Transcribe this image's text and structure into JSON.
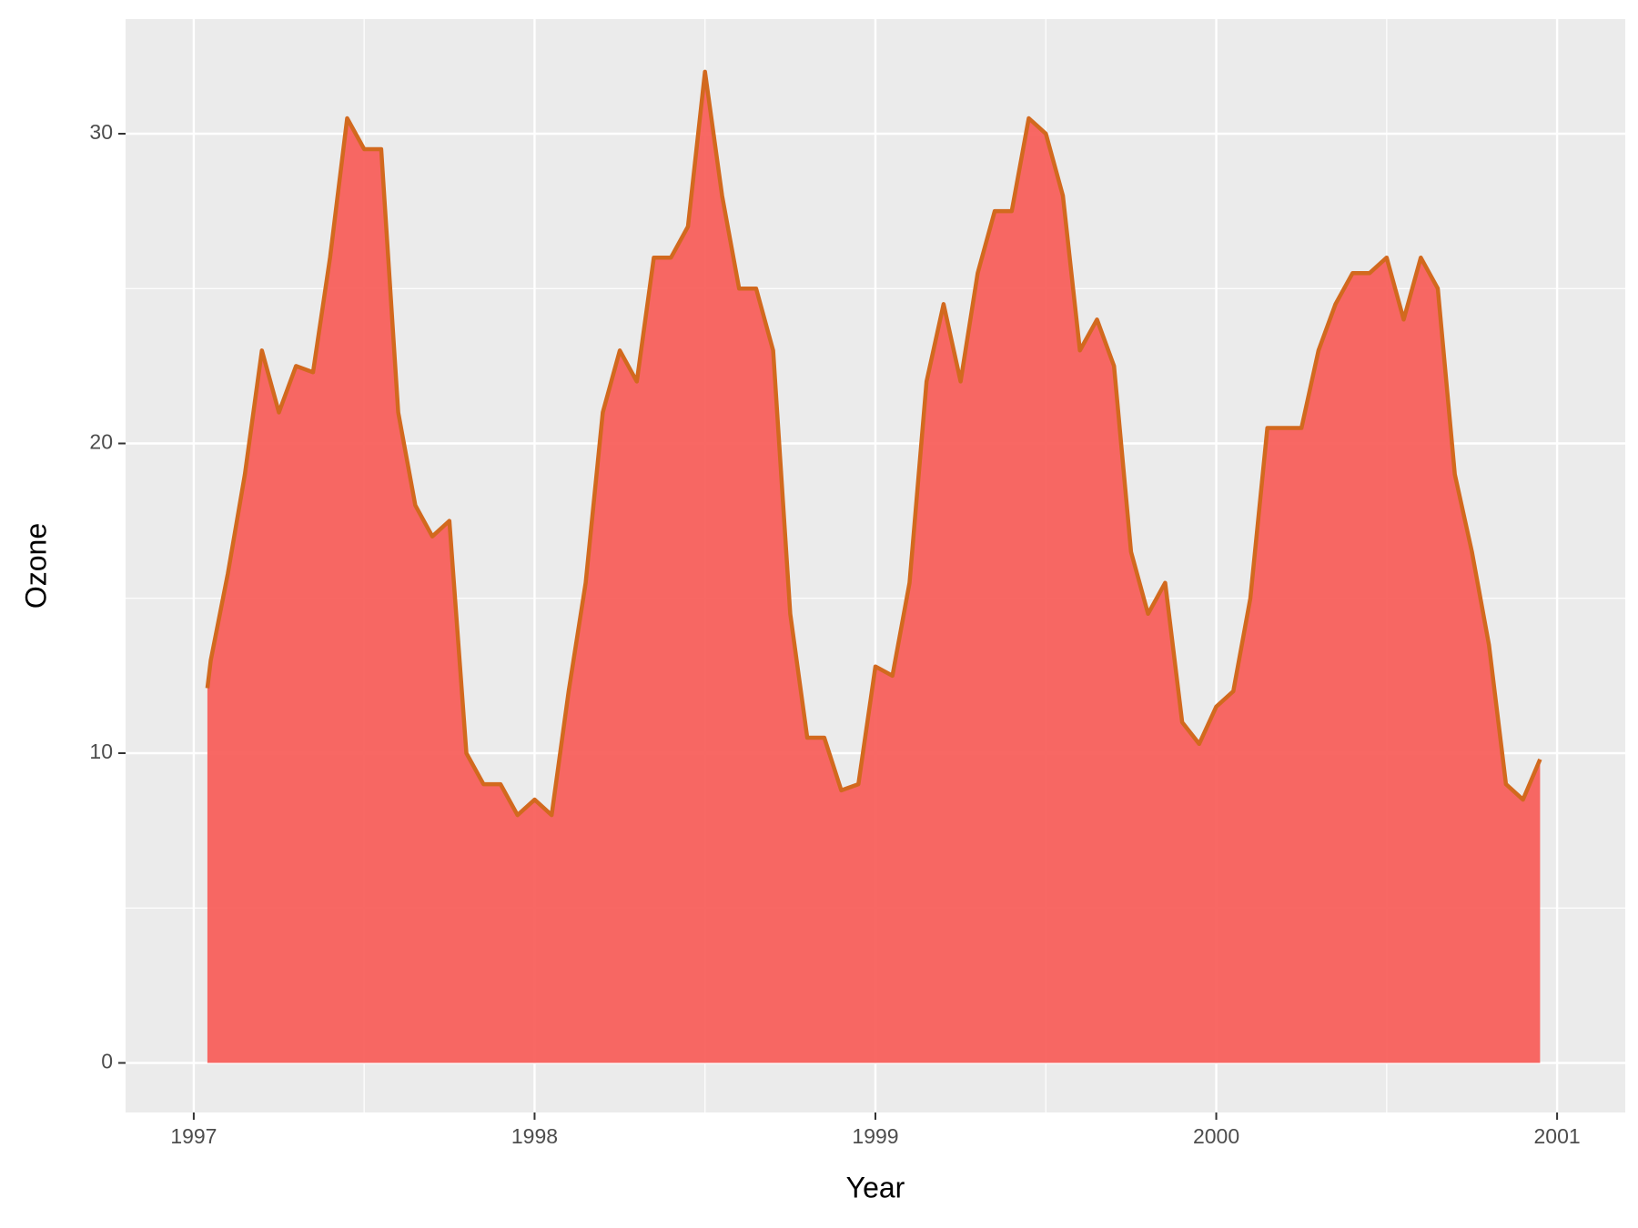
{
  "chart_data": {
    "type": "area",
    "xlabel": "Year",
    "ylabel": "Ozone",
    "x": [
      1997.04,
      1997.05,
      1997.1,
      1997.15,
      1997.2,
      1997.25,
      1997.3,
      1997.35,
      1997.4,
      1997.45,
      1997.5,
      1997.55,
      1997.6,
      1997.65,
      1997.7,
      1997.75,
      1997.8,
      1997.85,
      1997.9,
      1997.95,
      1998.0,
      1998.05,
      1998.1,
      1998.15,
      1998.2,
      1998.25,
      1998.3,
      1998.35,
      1998.4,
      1998.45,
      1998.5,
      1998.55,
      1998.6,
      1998.65,
      1998.7,
      1998.75,
      1998.8,
      1998.85,
      1998.9,
      1998.95,
      1999.0,
      1999.05,
      1999.1,
      1999.15,
      1999.2,
      1999.25,
      1999.3,
      1999.35,
      1999.4,
      1999.45,
      1999.5,
      1999.55,
      1999.6,
      1999.65,
      1999.7,
      1999.75,
      1999.8,
      1999.85,
      1999.9,
      1999.95,
      2000.0,
      2000.05,
      2000.1,
      2000.15,
      2000.2,
      2000.25,
      2000.3,
      2000.35,
      2000.4,
      2000.45,
      2000.5,
      2000.55,
      2000.6,
      2000.65,
      2000.7,
      2000.75,
      2000.8,
      2000.85,
      2000.9,
      2000.95
    ],
    "series": [
      {
        "name": "Ozone",
        "color": "#f8605c",
        "line_color": "#d2691e",
        "values": [
          12.1,
          13,
          15.8,
          19,
          23,
          21,
          22.5,
          22.3,
          26,
          30.5,
          29.5,
          29.5,
          21,
          18,
          17,
          17.5,
          10,
          9,
          9,
          8,
          8.5,
          8,
          12,
          15.5,
          21,
          23,
          22,
          26,
          26,
          27,
          32,
          28,
          25,
          25,
          23,
          14.5,
          10.5,
          10.5,
          8.8,
          9,
          12.8,
          12.5,
          15.5,
          22,
          24.5,
          22,
          25.5,
          27.5,
          27.5,
          30.5,
          30,
          28,
          23,
          24,
          22.5,
          16.5,
          14.5,
          15.5,
          11,
          10.3,
          11.5,
          12,
          15,
          20.5,
          20.5,
          20.5,
          23,
          24.5,
          25.5,
          25.5,
          26,
          24,
          26,
          25,
          19,
          16.5,
          13.5,
          9,
          8.5,
          9.8
        ]
      }
    ],
    "xlim": [
      1996.8,
      2001.2
    ],
    "xticks": [
      1997,
      1998,
      1999,
      2000,
      2001
    ],
    "ylim": [
      -1.6,
      33.7
    ],
    "yticks": [
      0,
      10,
      20,
      30
    ],
    "grid": true,
    "minor_grid": true
  }
}
